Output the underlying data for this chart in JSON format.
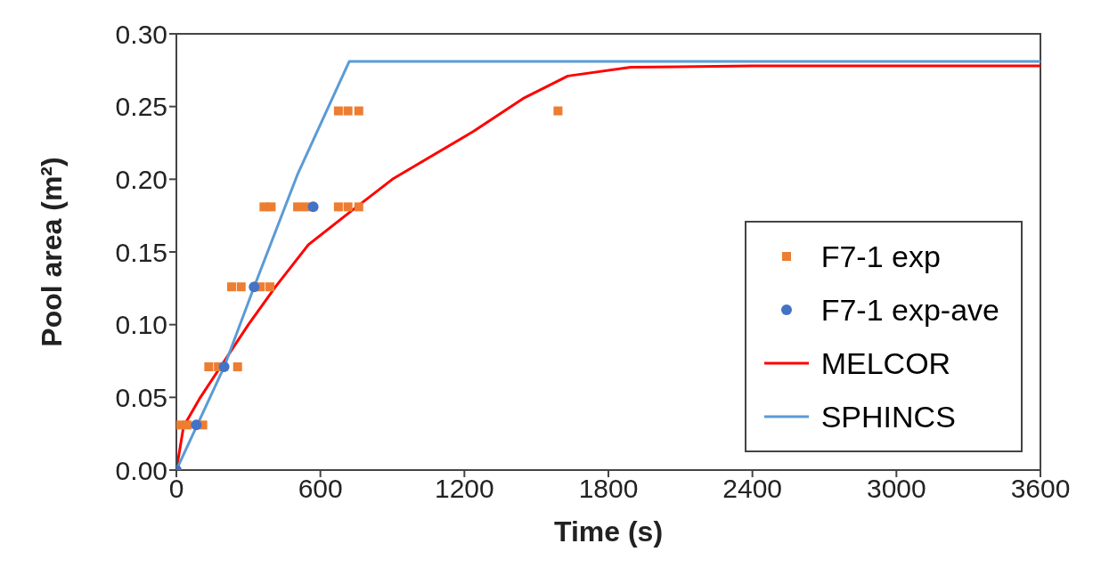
{
  "chart_data": {
    "type": "scatter",
    "xlabel": "Time (s)",
    "ylabel": "Pool area (m²)",
    "xlim": [
      0,
      3600
    ],
    "xticks": [
      0,
      600,
      1200,
      1800,
      2400,
      3000,
      3600
    ],
    "ylim": [
      0,
      0.3
    ],
    "yticks": [
      {
        "value": 0,
        "label": "0.00"
      },
      {
        "value": 0.05,
        "label": "0.05"
      },
      {
        "value": 0.1,
        "label": "0.10"
      },
      {
        "value": 0.15,
        "label": "0.15"
      },
      {
        "value": 0.2,
        "label": "0.20"
      },
      {
        "value": 0.25,
        "label": "0.25"
      },
      {
        "value": 0.3,
        "label": "0.30"
      }
    ],
    "grid": false,
    "legend": "bottom right",
    "series": [
      {
        "name": "F7-1 exp",
        "marker": "square",
        "color": "#ed7d31",
        "x": [
          15,
          45,
          75,
          110,
          135,
          175,
          215,
          255,
          230,
          270,
          310,
          350,
          390,
          365,
          395,
          505,
          540,
          675,
          715,
          760,
          675,
          715,
          760,
          1590
        ],
        "values": [
          0.031,
          0.031,
          null,
          0.031,
          0.071,
          0.071,
          null,
          0.071,
          0.126,
          0.126,
          null,
          0.126,
          0.126,
          0.181,
          0.181,
          0.181,
          0.181,
          0.181,
          0.181,
          0.181,
          0.247,
          0.247,
          0.247,
          0.247
        ]
      },
      {
        "name": "F7-1 exp-ave",
        "marker": "circle",
        "color": "#4472c4",
        "x": [
          0,
          83,
          199,
          324,
          570
        ],
        "values": [
          0,
          0.031,
          0.071,
          0.126,
          0.181
        ]
      },
      {
        "name": "MELCOR",
        "type": "line",
        "marker": "none",
        "color": "#ff0000",
        "x": [
          0,
          30,
          100,
          200,
          300,
          413,
          550,
          720,
          900,
          1238,
          1450,
          1631,
          1893,
          2400,
          3600
        ],
        "values": [
          0,
          0.03,
          0.05,
          0.075,
          0.1,
          0.126,
          0.155,
          0.177,
          0.2,
          0.233,
          0.256,
          0.271,
          0.277,
          0.278,
          0.278
        ]
      },
      {
        "name": "SPHINCS",
        "type": "line",
        "marker": "none",
        "color": "#5b9bd5",
        "x": [
          0,
          199,
          324,
          504,
          720,
          3600
        ],
        "values": [
          0,
          0.071,
          0.126,
          0.203,
          0.281,
          0.281
        ]
      }
    ]
  }
}
